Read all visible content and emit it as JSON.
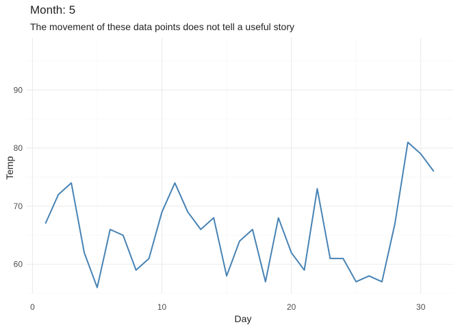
{
  "title": "Month: 5",
  "subtitle": "The movement of these data points does not tell a useful story",
  "chart_data": {
    "type": "line",
    "title": "Month: 5",
    "subtitle": "The movement of these data points does not tell a useful story",
    "xlabel": "Day",
    "ylabel": "Temp",
    "xlim": [
      -0.5,
      32.5
    ],
    "ylim": [
      55,
      99
    ],
    "xticks": [
      0,
      10,
      20,
      30
    ],
    "yticks": [
      60,
      70,
      80,
      90
    ],
    "grid": true,
    "line_color": "#4682B4",
    "x": [
      1,
      2,
      3,
      4,
      5,
      6,
      7,
      8,
      9,
      10,
      11,
      12,
      13,
      14,
      15,
      16,
      17,
      18,
      19,
      20,
      21,
      22,
      23,
      24,
      25,
      26,
      27,
      28,
      29,
      30,
      31
    ],
    "values": [
      67,
      72,
      74,
      62,
      56,
      66,
      65,
      59,
      61,
      69,
      74,
      69,
      66,
      68,
      58,
      64,
      66,
      57,
      68,
      62,
      59,
      73,
      61,
      61,
      57,
      58,
      57,
      67,
      81,
      79,
      76
    ]
  }
}
